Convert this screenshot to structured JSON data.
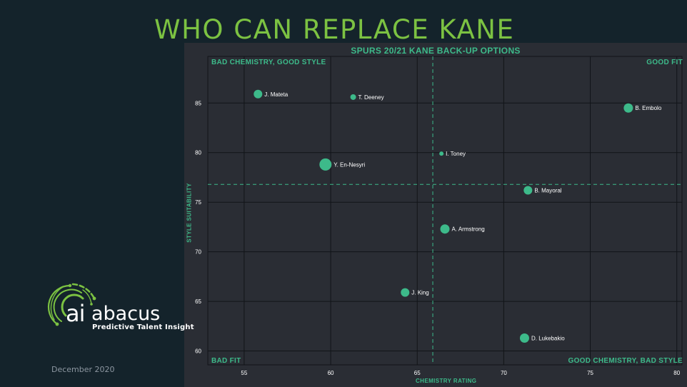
{
  "slide": {
    "title": "WHO CAN REPLACE KANE",
    "date": "December 2020"
  },
  "logo": {
    "mark": "ai",
    "name": "abacus",
    "tagline": "Predictive Talent Insight",
    "icon": "abacus-circuit-rings-icon",
    "color": "#7cc242"
  },
  "quadrants": {
    "top_left": "BAD CHEMISTRY, GOOD STYLE",
    "top_right": "GOOD FIT",
    "bottom_left": "BAD FIT",
    "bottom_right": "GOOD CHEMISTRY, BAD STYLE"
  },
  "colors": {
    "accent": "#3dba8a",
    "title": "#7cc242",
    "background": "#14232b",
    "panel": "#2a2d34",
    "grid": "#111418"
  },
  "chart_data": {
    "type": "scatter",
    "title": "SPURS 20/21 KANE BACK-UP OPTIONS",
    "xlabel": "CHEMISTRY RATING",
    "ylabel": "STYLE SUITABILITY",
    "xlim": [
      52.9,
      80.3
    ],
    "ylim": [
      58.6,
      89.7
    ],
    "xticks": [
      55,
      60,
      65,
      70,
      75,
      80
    ],
    "yticks": [
      60,
      65,
      70,
      75,
      80,
      85
    ],
    "grid": true,
    "reference_lines": {
      "x": 65.9,
      "y": 76.8
    },
    "points": [
      {
        "label": "J. Mateta",
        "x": 55.8,
        "y": 85.9,
        "size": 6
      },
      {
        "label": "T. Deeney",
        "x": 61.3,
        "y": 85.6,
        "size": 4
      },
      {
        "label": "B. Embolo",
        "x": 77.2,
        "y": 84.5,
        "size": 6.5
      },
      {
        "label": "I. Toney",
        "x": 66.4,
        "y": 79.9,
        "size": 3
      },
      {
        "label": "Y. En-Nesyri",
        "x": 59.7,
        "y": 78.8,
        "size": 8.5
      },
      {
        "label": "B. Mayoral",
        "x": 71.4,
        "y": 76.2,
        "size": 6
      },
      {
        "label": "A. Armstrong",
        "x": 66.6,
        "y": 72.3,
        "size": 6.5
      },
      {
        "label": "J. King",
        "x": 64.3,
        "y": 65.9,
        "size": 6
      },
      {
        "label": "D. Lukebakio",
        "x": 71.2,
        "y": 61.3,
        "size": 6.5
      }
    ]
  }
}
